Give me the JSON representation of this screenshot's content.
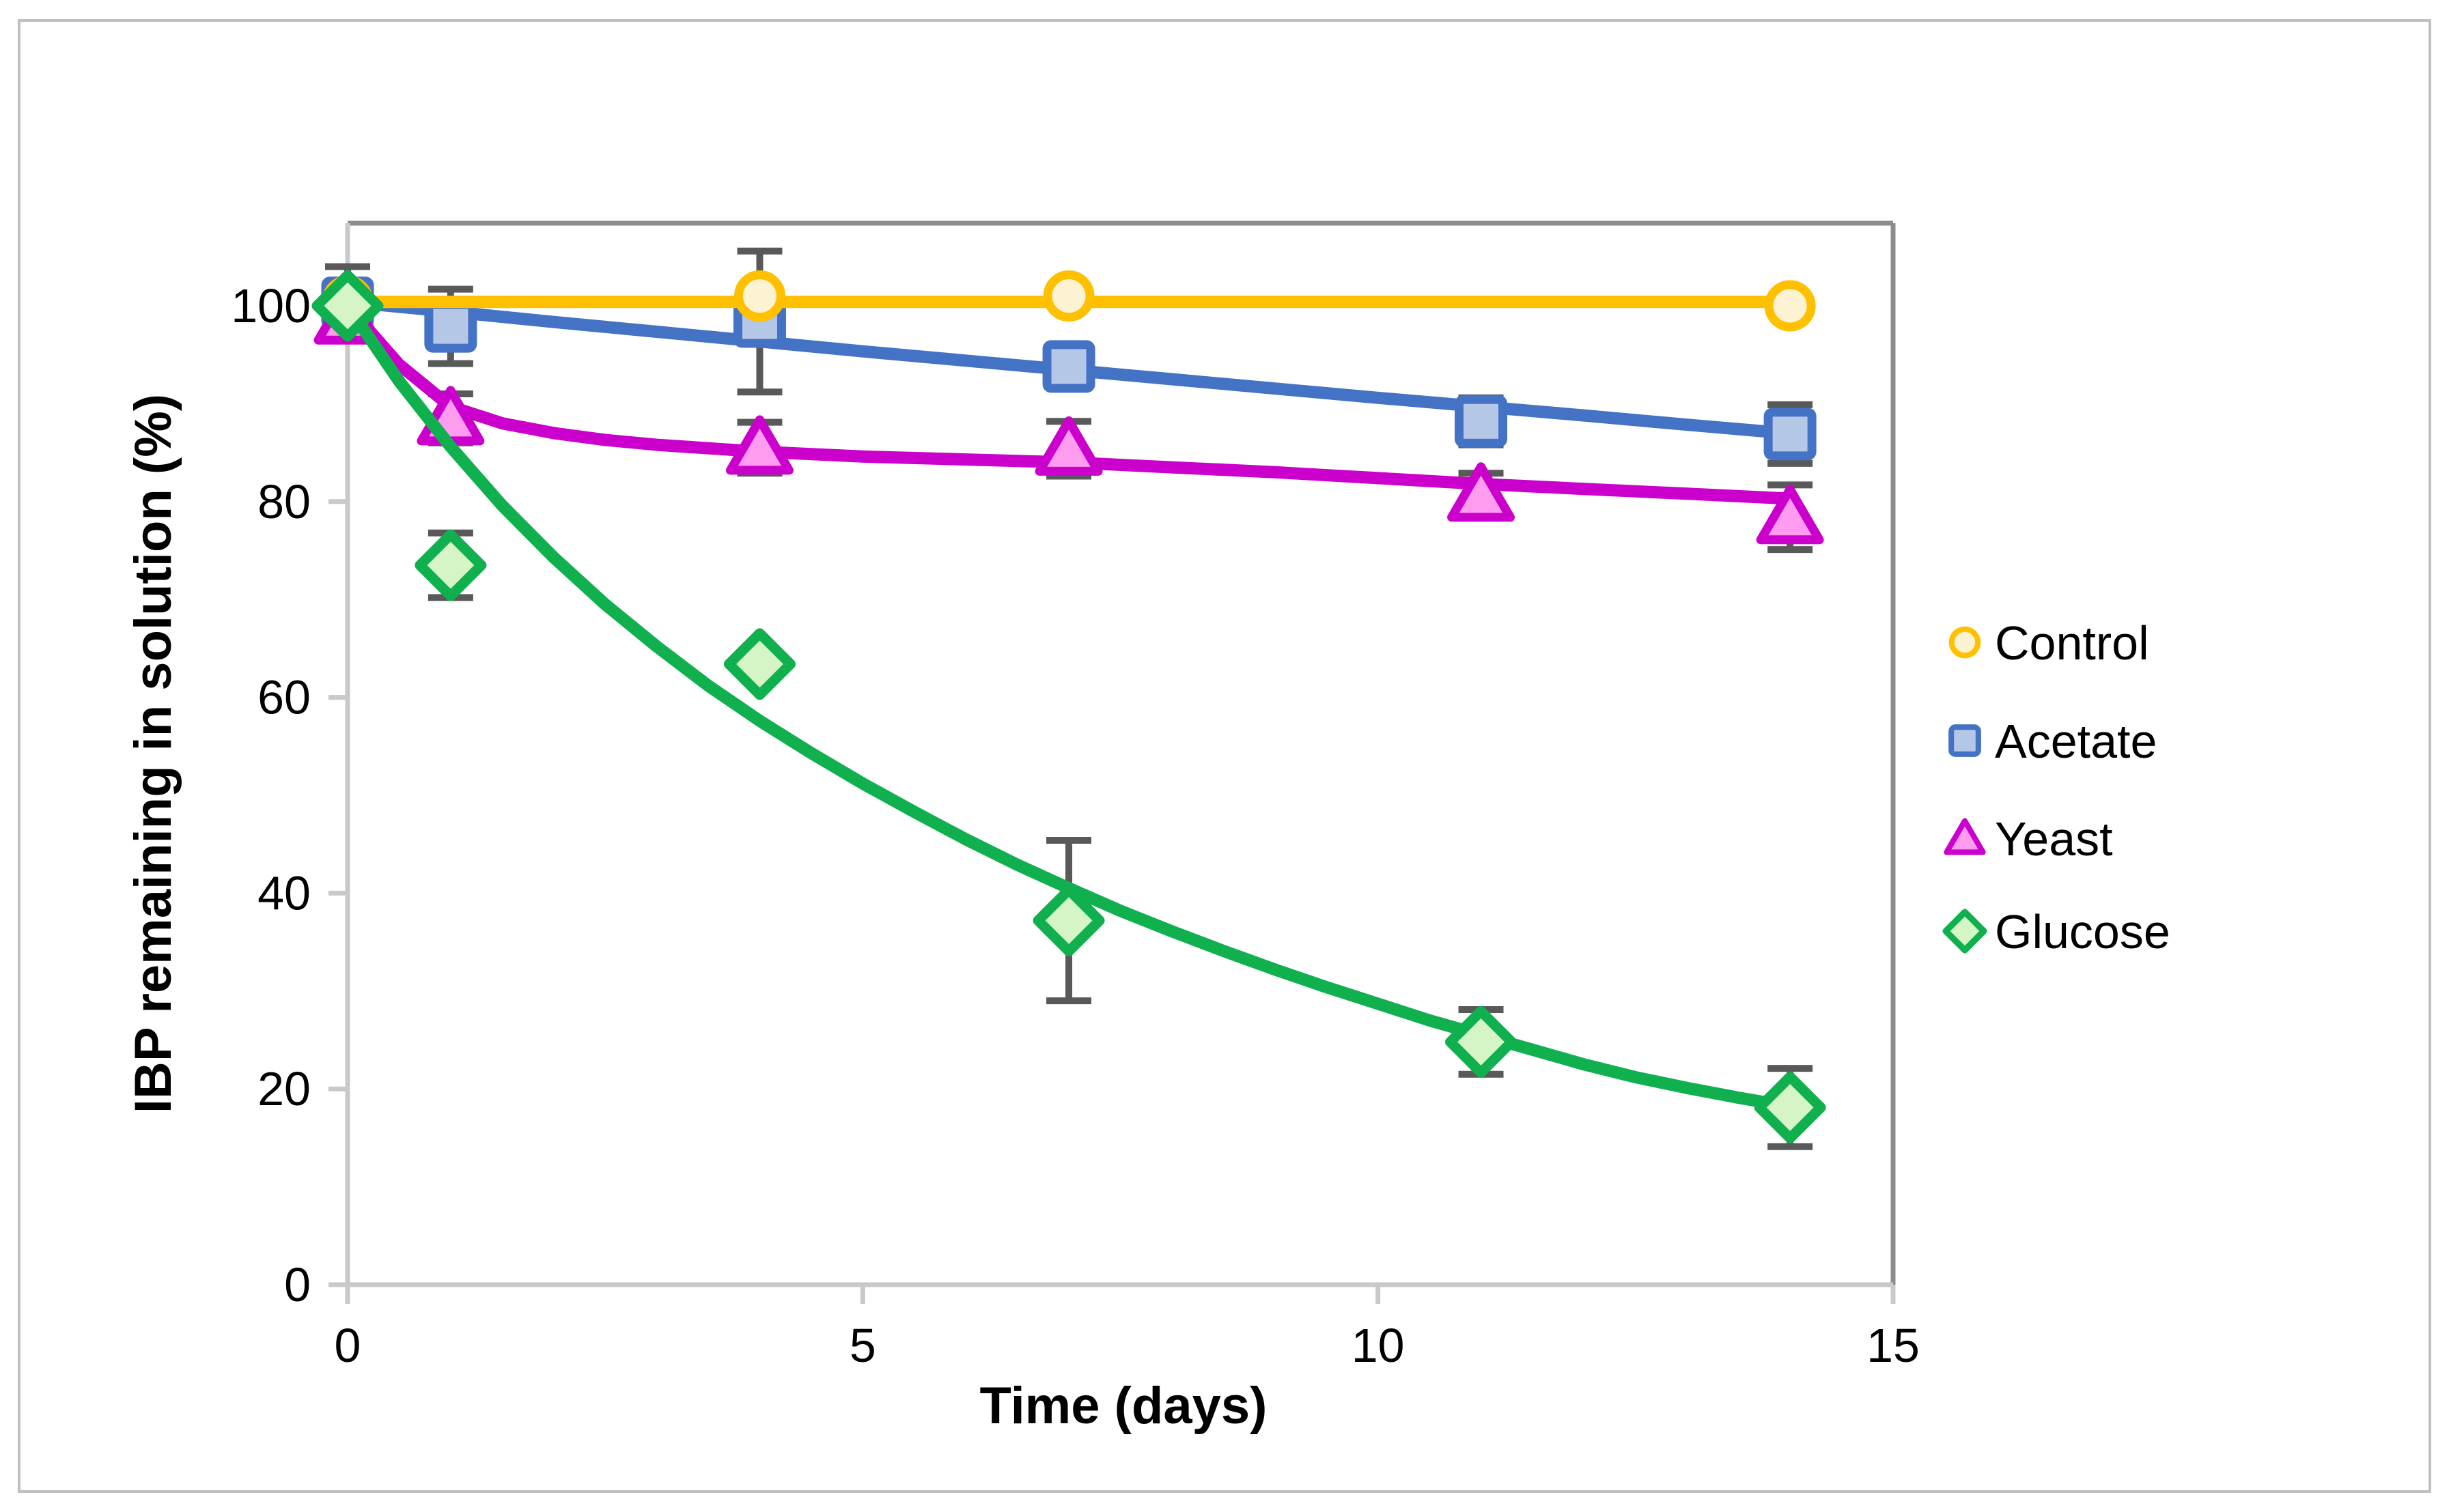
{
  "chart_data": {
    "type": "scatter",
    "title": "",
    "xlabel": "Time (days)",
    "ylabel": "IBP remaining in solution (%)",
    "xlim": [
      0,
      15
    ],
    "ylim": [
      0,
      108.4
    ],
    "x_ticks": [
      0,
      5,
      10,
      15
    ],
    "y_ticks": [
      0,
      20,
      40,
      60,
      80,
      100
    ],
    "grid": false,
    "legend_position": "right-outside",
    "colors": {
      "control": "#FFC000",
      "control_fill": "#FDF2D2",
      "acetate": "#4472C4",
      "acetate_fill": "#B4C7E7",
      "yeast": "#CC00CC",
      "yeast_fill": "#FF9CF0",
      "glucose": "#10B04F",
      "glucose_fill": "#D6F5C7",
      "error_bar": "#595959",
      "axis_line": "#C9C9C9",
      "plot_border": "#8C8C8C"
    },
    "series": [
      {
        "name": "Control",
        "marker": "circle",
        "color": "#FFC000",
        "fill": "#FDF2D2",
        "x": [
          0,
          4,
          7,
          14
        ],
        "y": [
          100.5,
          101,
          101,
          100
        ],
        "yerr": [
          0,
          0,
          0,
          0
        ],
        "curve": [
          [
            0,
            100.4
          ],
          [
            14,
            100.4
          ]
        ]
      },
      {
        "name": "Acetate",
        "marker": "square",
        "color": "#4472C4",
        "fill": "#B4C7E7",
        "x": [
          0,
          1,
          4,
          7,
          11,
          14
        ],
        "y": [
          100.3,
          97.9,
          98.4,
          93.8,
          88.2,
          86.9
        ],
        "yerr": [
          3.7,
          3.8,
          7.2,
          1.9,
          2.4,
          3.0
        ],
        "curve": [
          [
            0,
            100.4
          ],
          [
            1,
            99.4
          ],
          [
            2,
            98.35
          ],
          [
            3,
            97.35
          ],
          [
            4,
            96.35
          ],
          [
            5,
            95.35
          ],
          [
            6,
            94.4
          ],
          [
            7,
            93.45
          ],
          [
            8,
            92.5
          ],
          [
            9,
            91.55
          ],
          [
            10,
            90.6
          ],
          [
            11,
            89.7
          ],
          [
            12,
            88.8
          ],
          [
            13,
            87.85
          ],
          [
            14,
            86.95
          ]
        ]
      },
      {
        "name": "Yeast",
        "marker": "triangle",
        "color": "#CC00CC",
        "fill": "#FF9CF0",
        "x": [
          0,
          1,
          4,
          7,
          11,
          14
        ],
        "y": [
          98.8,
          88.5,
          85.5,
          85.4,
          80.7,
          78.4
        ],
        "yerr": [
          0,
          2.5,
          2.6,
          2.8,
          2.2,
          3.3
        ],
        "curve": [
          [
            0,
            100
          ],
          [
            0.5,
            94
          ],
          [
            1,
            89.7
          ],
          [
            1.5,
            88
          ],
          [
            2,
            87
          ],
          [
            2.5,
            86.3
          ],
          [
            3,
            85.8
          ],
          [
            4,
            85.1
          ],
          [
            5,
            84.6
          ],
          [
            6,
            84.3
          ],
          [
            7,
            84.0
          ],
          [
            8,
            83.5
          ],
          [
            9,
            83.0
          ],
          [
            10,
            82.4
          ],
          [
            11,
            81.8
          ],
          [
            12,
            81.3
          ],
          [
            13,
            80.8
          ],
          [
            14,
            80.3
          ]
        ]
      },
      {
        "name": "Glucose",
        "marker": "diamond",
        "color": "#10B04F",
        "fill": "#D6F5C7",
        "x": [
          0,
          1,
          4,
          7,
          11,
          14
        ],
        "y": [
          100,
          73.5,
          63.4,
          37.2,
          24.8,
          18.1
        ],
        "yerr": [
          0,
          3.3,
          0,
          8.2,
          3.3,
          4.0
        ],
        "curve": [
          [
            0,
            100
          ],
          [
            0.5,
            92.3
          ],
          [
            1,
            85.6
          ],
          [
            1.5,
            79.6
          ],
          [
            2,
            74.3
          ],
          [
            2.5,
            69.5
          ],
          [
            3,
            65.2
          ],
          [
            3.5,
            61.2
          ],
          [
            4,
            57.6
          ],
          [
            4.5,
            54.3
          ],
          [
            5,
            51.2
          ],
          [
            5.5,
            48.3
          ],
          [
            6,
            45.5
          ],
          [
            6.5,
            42.9
          ],
          [
            7,
            40.5
          ],
          [
            7.5,
            38.2
          ],
          [
            8,
            36.1
          ],
          [
            8.5,
            34.1
          ],
          [
            9,
            32.2
          ],
          [
            9.5,
            30.4
          ],
          [
            10,
            28.7
          ],
          [
            10.5,
            27.0
          ],
          [
            11,
            25.5
          ],
          [
            11.5,
            24.0
          ],
          [
            12,
            22.5
          ],
          [
            12.5,
            21.2
          ],
          [
            13,
            20.1
          ],
          [
            13.5,
            19.1
          ],
          [
            14,
            18.2
          ]
        ]
      }
    ]
  }
}
